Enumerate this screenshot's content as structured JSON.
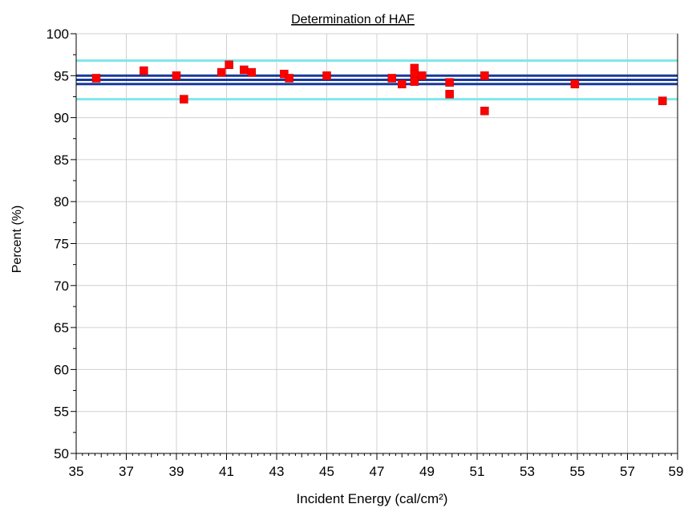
{
  "chart_data": {
    "type": "scatter",
    "title": "Determination of HAF",
    "xlabel": "Incident Energy (cal/cm²)",
    "ylabel": "Percent (%)",
    "xlim": [
      35,
      59
    ],
    "ylim": [
      50,
      100
    ],
    "x_ticks": [
      35,
      37,
      39,
      41,
      43,
      45,
      47,
      49,
      51,
      53,
      55,
      57,
      59
    ],
    "y_ticks": [
      50,
      55,
      60,
      65,
      70,
      75,
      80,
      85,
      90,
      95,
      100
    ],
    "grid": true,
    "legend": "none",
    "colors": {
      "points": "#ff0000",
      "point_stroke": "#bb0000",
      "mean_band": "#1a3a9a",
      "outer_band": "#7fe8e8",
      "grid": "#d0d0d0"
    },
    "reference_lines": [
      {
        "kind": "outer",
        "y": 96.8
      },
      {
        "kind": "mean",
        "y": 95.0
      },
      {
        "kind": "mean",
        "y": 94.5
      },
      {
        "kind": "mean",
        "y": 94.0
      },
      {
        "kind": "outer",
        "y": 92.2
      }
    ],
    "points": [
      {
        "x": 35.8,
        "y": 94.7
      },
      {
        "x": 37.7,
        "y": 95.6
      },
      {
        "x": 39.0,
        "y": 95.0
      },
      {
        "x": 39.3,
        "y": 92.2
      },
      {
        "x": 40.8,
        "y": 95.4
      },
      {
        "x": 41.1,
        "y": 96.3
      },
      {
        "x": 41.7,
        "y": 95.7
      },
      {
        "x": 42.0,
        "y": 95.4
      },
      {
        "x": 43.3,
        "y": 95.2
      },
      {
        "x": 43.5,
        "y": 94.7
      },
      {
        "x": 45.0,
        "y": 95.0
      },
      {
        "x": 47.6,
        "y": 94.7
      },
      {
        "x": 48.0,
        "y": 94.0
      },
      {
        "x": 48.5,
        "y": 95.9
      },
      {
        "x": 48.5,
        "y": 95.2
      },
      {
        "x": 48.5,
        "y": 94.3
      },
      {
        "x": 48.8,
        "y": 95.0
      },
      {
        "x": 49.9,
        "y": 94.2
      },
      {
        "x": 49.9,
        "y": 92.8
      },
      {
        "x": 51.3,
        "y": 95.0
      },
      {
        "x": 51.3,
        "y": 90.8
      },
      {
        "x": 54.9,
        "y": 94.0
      },
      {
        "x": 58.4,
        "y": 92.0
      }
    ]
  }
}
